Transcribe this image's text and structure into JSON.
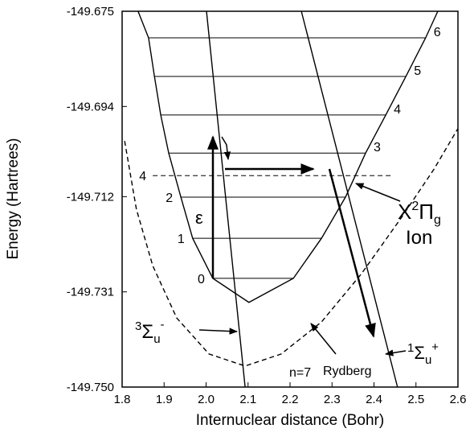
{
  "chart_data": {
    "type": "line",
    "xlabel": "Internuclear distance (Bohr)",
    "ylabel": "Energy (Hartrees)",
    "xlim": [
      1.8,
      2.6
    ],
    "ylim": [
      -149.75,
      -149.675
    ],
    "xticks": [
      1.8,
      1.9,
      {
        "value": 2,
        "label": "2.0"
      },
      2.1,
      2.2,
      2.3,
      2.4,
      2.5,
      2.6
    ],
    "yticks": [
      {
        "value": -149.75,
        "label": "-149.750"
      },
      -149.731,
      -149.712,
      -149.694,
      -149.675
    ],
    "series": [
      {
        "color": "#000000",
        "dashed": false,
        "x": [
          1.838,
          1.863,
          1.877,
          1.892,
          1.911,
          1.94,
          1.968,
          2.016,
          2.102,
          2.208,
          2.275,
          2.332,
          2.38,
          2.428,
          2.476,
          2.523,
          2.552
        ],
        "values": [
          -149.675,
          -149.6803,
          -149.688,
          -149.6957,
          -149.7033,
          -149.7121,
          -149.7203,
          -149.7283,
          -149.7331,
          -149.7283,
          -149.7203,
          -149.7121,
          -149.7033,
          -149.6957,
          -149.688,
          -149.6803,
          -149.675
        ]
      },
      {
        "color": "#000000",
        "dashed": true,
        "x": [
          1.806,
          1.834,
          1.873,
          1.93,
          2.007,
          2.093,
          2.179,
          2.275,
          2.37,
          2.466,
          2.543,
          2.6
        ],
        "values": [
          -149.7009,
          -149.7145,
          -149.7258,
          -149.7362,
          -149.7434,
          -149.7458,
          -149.7434,
          -149.737,
          -149.7274,
          -149.7161,
          -149.7065,
          -149.6984
        ]
      },
      {
        "color": "#000000",
        "dashed": false,
        "x": [
          2.001,
          2.093
        ],
        "values": [
          -149.675,
          -149.75
        ]
      },
      {
        "color": "#000000",
        "dashed": false,
        "x": [
          2.227,
          2.456
        ],
        "values": [
          -149.675,
          -149.75
        ]
      }
    ],
    "levels": {
      "labels": [
        "0",
        "1",
        "2",
        "3",
        "4",
        "5",
        "6"
      ],
      "values": [
        -149.7283,
        -149.7203,
        -149.7121,
        -149.7033,
        -149.6957,
        -149.688,
        -149.6803
      ],
      "xranges": [
        [
          2.016,
          2.208
        ],
        [
          1.968,
          2.275
        ],
        [
          1.94,
          2.332
        ],
        [
          1.911,
          2.38
        ],
        [
          1.892,
          2.428
        ],
        [
          1.877,
          2.476
        ],
        [
          1.863,
          2.523
        ]
      ]
    },
    "rydberg_level": {
      "label": "4",
      "value": -149.7078,
      "xrange": [
        1.873,
        2.447
      ]
    },
    "annotations": {
      "epsilon": "ε",
      "ion": [
        "X",
        "2",
        "Π",
        "g"
      ],
      "ion_line2": "Ion",
      "sigma_minus": [
        "3",
        "Σ",
        "u",
        "-"
      ],
      "sigma_plus": [
        "1",
        "Σ",
        "u",
        "+"
      ],
      "rydberg_n": "n=7",
      "rydberg": "Rydberg"
    }
  }
}
